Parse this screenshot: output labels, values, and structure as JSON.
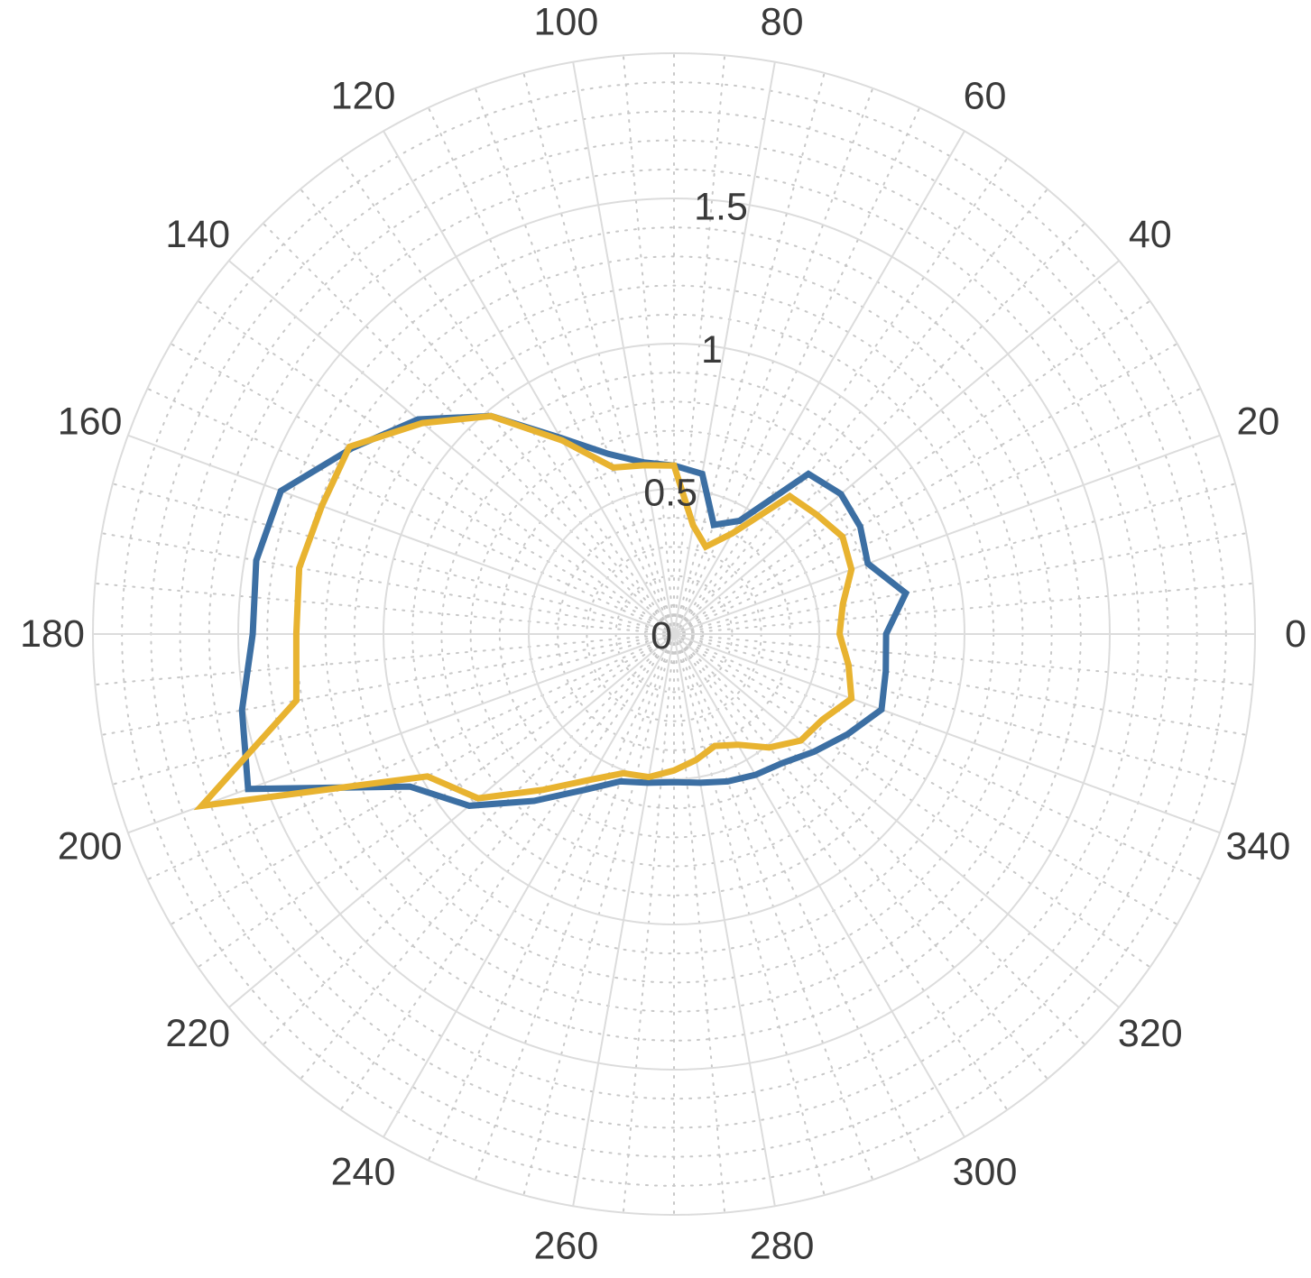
{
  "chart_data": {
    "type": "polar-line",
    "title": "",
    "theta_unit": "degrees",
    "angular_ticks": [
      "0",
      "20",
      "40",
      "60",
      "80",
      "100",
      "120",
      "140",
      "160",
      "180",
      "200",
      "220",
      "240",
      "260",
      "280",
      "300",
      "320",
      "340"
    ],
    "angular_tick_values": [
      0,
      20,
      40,
      60,
      80,
      100,
      120,
      140,
      160,
      180,
      200,
      220,
      240,
      260,
      280,
      300,
      320,
      340
    ],
    "radial_ticks": [
      "0",
      "0.5",
      "1",
      "1.5"
    ],
    "radial_tick_values": [
      0,
      0.5,
      1,
      1.5
    ],
    "rlim": [
      0,
      2
    ],
    "grid": true,
    "legend": "none",
    "theta_step_deg": 10,
    "series": [
      {
        "color": "#3c6fa3",
        "theta": [
          0,
          10,
          20,
          30,
          40,
          50,
          60,
          70,
          80,
          90,
          100,
          110,
          120,
          130,
          140,
          150,
          160,
          170,
          180,
          190,
          200,
          210,
          220,
          230,
          240,
          250,
          260,
          270,
          280,
          290,
          300,
          310,
          320,
          330,
          340,
          350
        ],
        "r": [
          0.73,
          0.81,
          0.71,
          0.74,
          0.75,
          0.72,
          0.45,
          0.4,
          0.56,
          0.58,
          0.6,
          0.66,
          0.78,
          0.98,
          1.15,
          1.28,
          1.44,
          1.46,
          1.45,
          1.51,
          1.56,
          1.05,
          0.92,
          0.75,
          0.62,
          0.54,
          0.52,
          0.51,
          0.52,
          0.54,
          0.56,
          0.58,
          0.63,
          0.69,
          0.76,
          0.74
        ]
      },
      {
        "color": "#e8b330",
        "theta": [
          0,
          10,
          20,
          30,
          40,
          50,
          60,
          70,
          80,
          90,
          100,
          110,
          120,
          130,
          140,
          150,
          160,
          170,
          180,
          190,
          200,
          210,
          220,
          230,
          240,
          250,
          260,
          270,
          280,
          290,
          300,
          310,
          320,
          330,
          340,
          350
        ],
        "r": [
          0.57,
          0.59,
          0.65,
          0.67,
          0.64,
          0.62,
          0.4,
          0.32,
          0.38,
          0.58,
          0.59,
          0.61,
          0.77,
          0.98,
          1.13,
          1.29,
          1.29,
          1.31,
          1.3,
          1.32,
          1.73,
          0.98,
          0.88,
          0.7,
          0.58,
          0.51,
          0.5,
          0.47,
          0.44,
          0.41,
          0.44,
          0.51,
          0.57,
          0.59,
          0.65,
          0.61
        ]
      }
    ]
  }
}
